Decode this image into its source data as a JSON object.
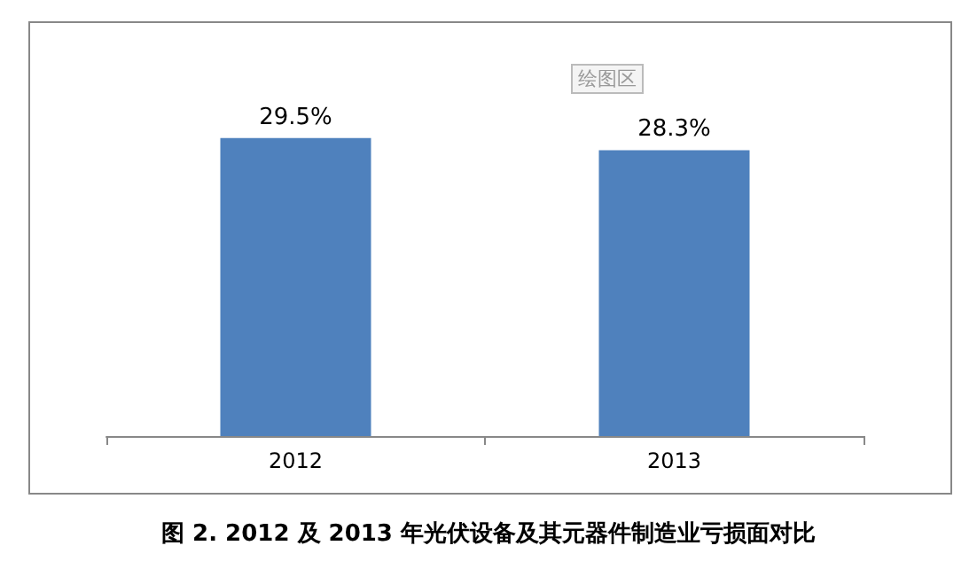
{
  "chart_data": {
    "type": "bar",
    "title": "图 2. 2012 及 2013 年光伏设备及其元器件制造业亏损面对比",
    "categories": [
      "2012",
      "2013"
    ],
    "values": [
      29.5,
      28.3
    ],
    "value_labels": [
      "29.5%",
      "28.3%"
    ],
    "color": "#4f81bd",
    "annotations": [
      "绘图区"
    ]
  }
}
